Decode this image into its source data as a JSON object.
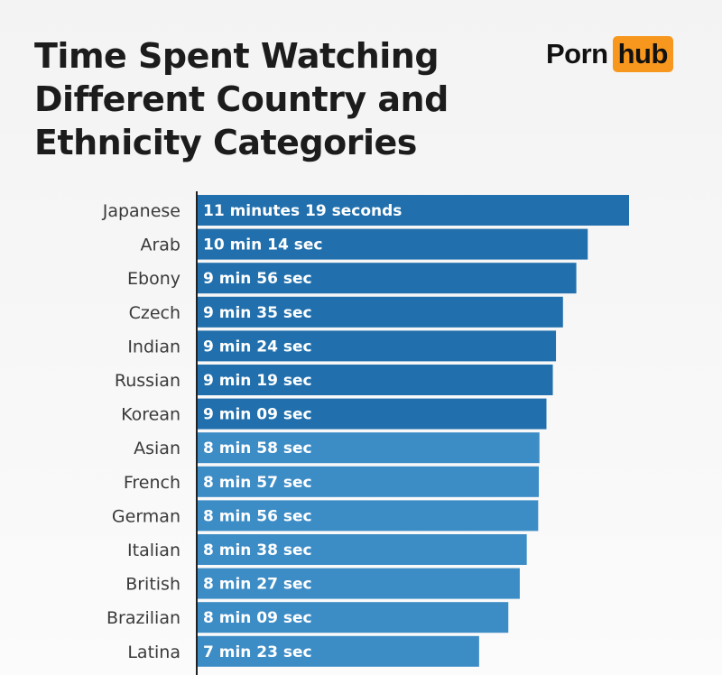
{
  "header": {
    "title_lines": [
      "Time Spent Watching",
      "Different Country and",
      "Ethnicity Categories"
    ]
  },
  "logo": {
    "part1": "Porn",
    "part2": "hub",
    "accent": "#f7971d"
  },
  "colors": {
    "bar_dark": "#2170ad",
    "bar_light": "#3c8cc6",
    "axis": "#222222"
  },
  "chart_data": {
    "type": "bar",
    "orientation": "horizontal",
    "title": "Time Spent Watching Different Country and Ethnicity Categories",
    "xlabel": "",
    "ylabel": "",
    "unit": "seconds",
    "xlim": [
      0,
      700
    ],
    "grid": false,
    "categories": [
      "Japanese",
      "Arab",
      "Ebony",
      "Czech",
      "Indian",
      "Russian",
      "Korean",
      "Asian",
      "French",
      "German",
      "Italian",
      "British",
      "Brazilian",
      "Latina"
    ],
    "values": [
      679,
      614,
      596,
      575,
      564,
      559,
      549,
      538,
      537,
      536,
      518,
      507,
      489,
      443
    ],
    "value_labels": [
      "11 minutes 19 seconds",
      "10 min 14 sec",
      "9 min 56 sec",
      "9 min 35 sec",
      "9 min 24 sec",
      "9 min 19 sec",
      "9 min 09 sec",
      "8 min 58 sec",
      "8 min 57 sec",
      "8 min 56 sec",
      "8 min 38 sec",
      "8 min 27 sec",
      "8 min 09 sec",
      "7 min 23 sec"
    ],
    "shade": [
      "dark",
      "dark",
      "dark",
      "dark",
      "dark",
      "dark",
      "dark",
      "light",
      "light",
      "light",
      "light",
      "light",
      "light",
      "light"
    ]
  }
}
